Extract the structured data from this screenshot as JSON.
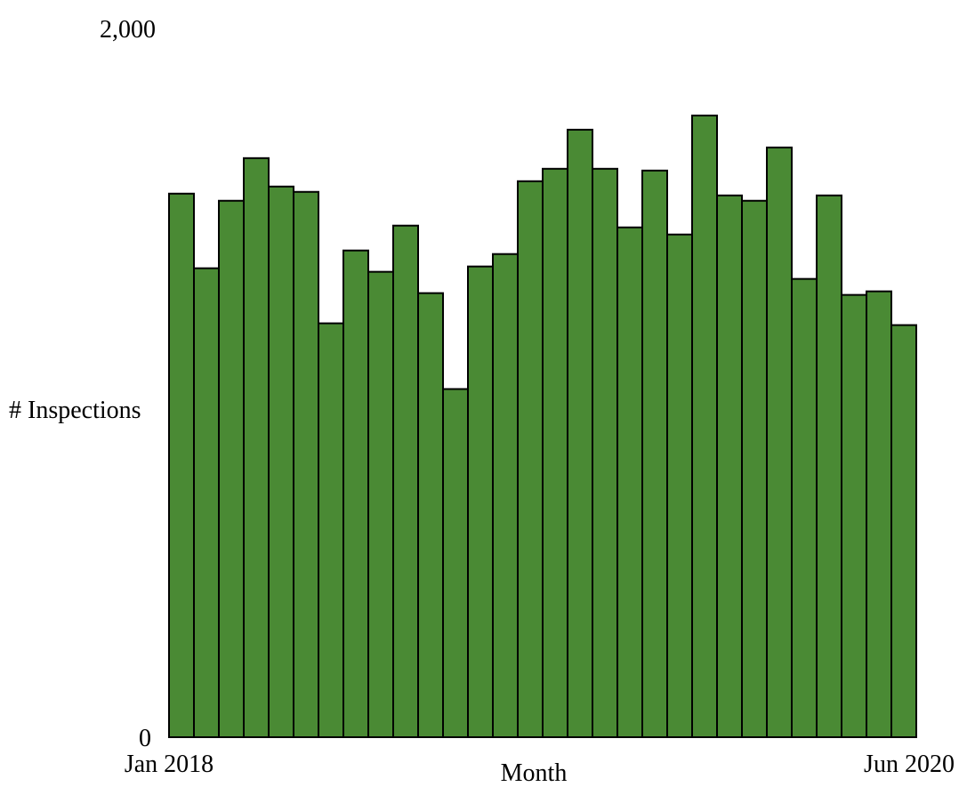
{
  "chart_data": {
    "type": "bar",
    "title": "",
    "xlabel": "Month",
    "ylabel": "# Inspections",
    "ylim": [
      0,
      2000
    ],
    "y_tick_labels": [
      "0",
      "2,000"
    ],
    "x_tick_labels": [
      "Jan 2018",
      "Jun 2020"
    ],
    "grid": false,
    "bar_color": "#4a8a34",
    "bar_outline_color": "#000000",
    "categories": [
      "Jan 2018",
      "Feb 2018",
      "Mar 2018",
      "Apr 2018",
      "May 2018",
      "Jun 2018",
      "Jul 2018",
      "Aug 2018",
      "Sep 2018",
      "Oct 2018",
      "Nov 2018",
      "Dec 2018",
      "Jan 2019",
      "Feb 2019",
      "Mar 2019",
      "Apr 2019",
      "May 2019",
      "Jun 2019",
      "Jul 2019",
      "Aug 2019",
      "Sep 2019",
      "Oct 2019",
      "Nov 2019",
      "Dec 2019",
      "Jan 2020",
      "Feb 2020",
      "Mar 2020",
      "Apr 2020",
      "May 2020",
      "Jun 2020"
    ],
    "values": [
      1530,
      1320,
      1510,
      1630,
      1550,
      1535,
      1165,
      1370,
      1310,
      1440,
      1250,
      980,
      1325,
      1360,
      1565,
      1600,
      1710,
      1600,
      1435,
      1595,
      1415,
      1750,
      1525,
      1510,
      1660,
      1290,
      1525,
      1245,
      1255,
      1160
    ]
  }
}
